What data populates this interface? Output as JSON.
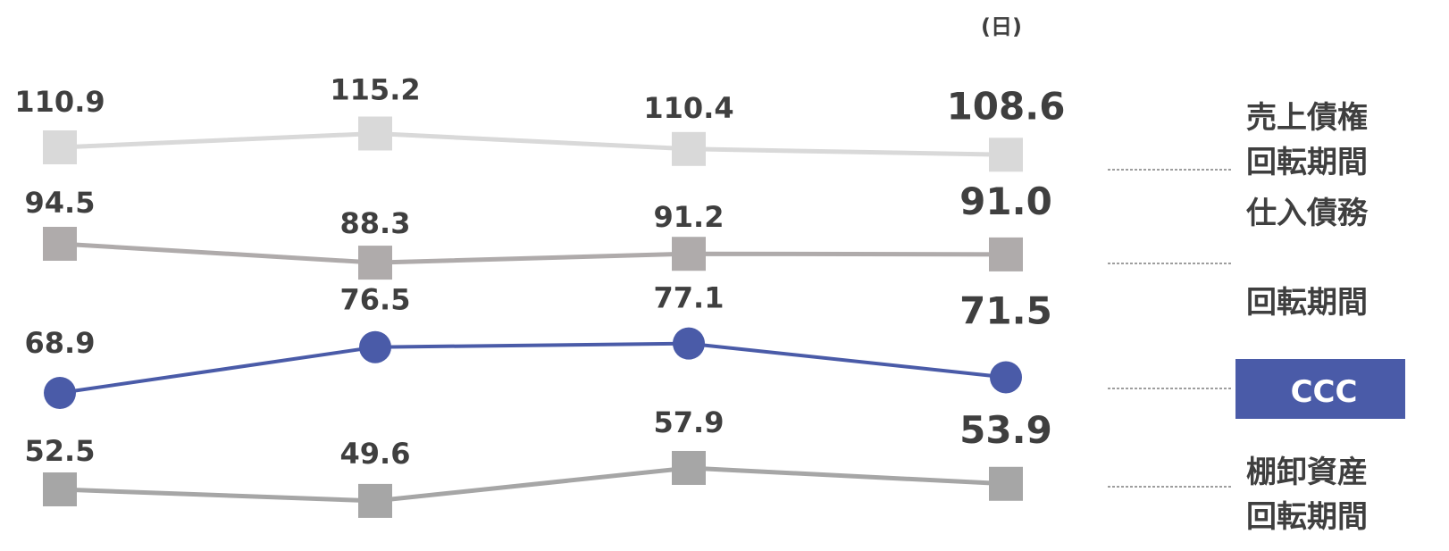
{
  "chart_data": {
    "type": "line",
    "unit_label": "(日)",
    "x": [
      "",
      "",
      "",
      ""
    ],
    "ylim": [
      40,
      120
    ],
    "grid": false,
    "legend_position": "right",
    "series": [
      {
        "name": "売上債権\n回転期間",
        "legend_lines": [
          "売上債権",
          "回転期間"
        ],
        "values": [
          110.9,
          115.2,
          110.4,
          108.6
        ],
        "labels": [
          "110.9",
          "115.2",
          "110.4",
          "108.6"
        ],
        "color": "#d9d9d9",
        "marker": "square"
      },
      {
        "name": "仕入債務\n回転期間",
        "legend_lines": [
          "仕入債務",
          "回転期間"
        ],
        "values": [
          94.5,
          88.3,
          91.2,
          91.0
        ],
        "labels": [
          "94.5",
          "88.3",
          "91.2",
          "91.0"
        ],
        "color": "#afabab",
        "marker": "square"
      },
      {
        "name": "CCC",
        "legend_lines": [
          "CCC"
        ],
        "values": [
          68.9,
          76.5,
          77.1,
          71.5
        ],
        "labels": [
          "68.9",
          "76.5",
          "77.1",
          "71.5"
        ],
        "color": "#4a5ba8",
        "marker": "circle"
      },
      {
        "name": "棚卸資産\n回転期間",
        "legend_lines": [
          "棚卸資産",
          "回転期間"
        ],
        "values": [
          52.5,
          49.6,
          57.9,
          53.9
        ],
        "labels": [
          "52.5",
          "49.6",
          "57.9",
          "53.9"
        ],
        "color": "#a6a6a6",
        "marker": "square"
      }
    ]
  }
}
